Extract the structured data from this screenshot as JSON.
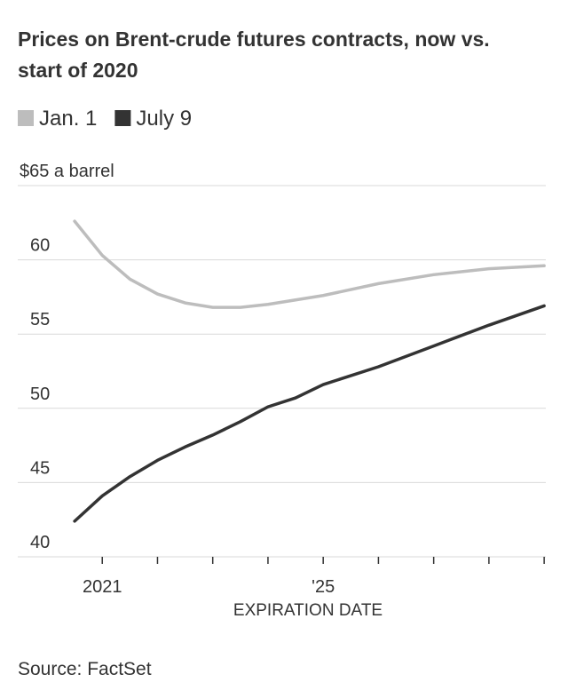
{
  "chart_data": {
    "type": "line",
    "title": "Prices on Brent-crude futures contracts, now vs. start of 2020",
    "x_label": "EXPIRATION DATE",
    "source": "Source: FactSet",
    "x": [
      2020.5,
      2021,
      2021.5,
      2022,
      2022.5,
      2023,
      2023.5,
      2024,
      2024.5,
      2025,
      2026,
      2027,
      2028,
      2029
    ],
    "series": [
      {
        "name": "Jan. 1",
        "color": "#bdbdbd",
        "values": [
          62.6,
          60.3,
          58.7,
          57.7,
          57.1,
          56.8,
          56.8,
          57.0,
          57.3,
          57.6,
          58.4,
          59.0,
          59.4,
          59.6
        ]
      },
      {
        "name": "July 9",
        "color": "#333333",
        "values": [
          42.4,
          44.1,
          45.4,
          46.5,
          47.4,
          48.2,
          49.1,
          50.1,
          50.7,
          51.6,
          52.8,
          54.2,
          55.6,
          56.9
        ]
      }
    ],
    "xlim": [
      2019.47,
      2029.03
    ],
    "xticks": [
      2021,
      {
        "value": 2025,
        "label": "'25"
      }
    ],
    "xminor_ticks": [
      2022,
      2023,
      2024,
      2026,
      2027,
      2028,
      2029
    ],
    "ylim": [
      40,
      65
    ],
    "yticks": [
      40,
      45,
      50,
      55,
      60,
      {
        "value": 65,
        "label": "$65 a barrel"
      }
    ],
    "grid": true,
    "legend": "top-left"
  }
}
